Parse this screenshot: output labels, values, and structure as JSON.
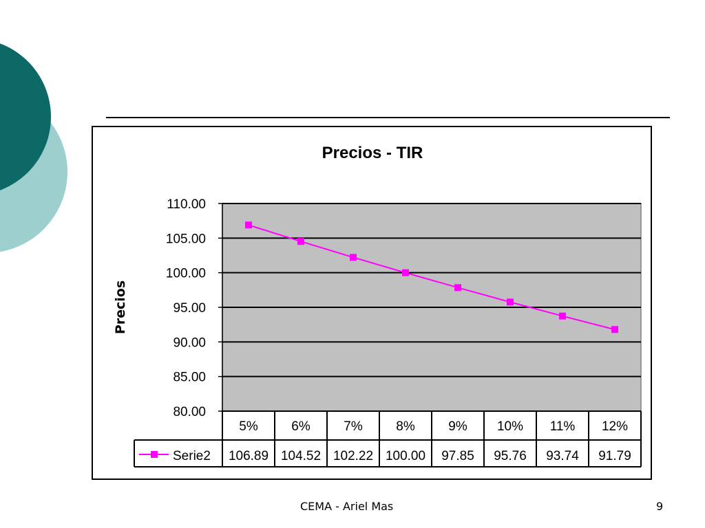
{
  "slide": {
    "footer_text": "CEMA  - Ariel Mas",
    "page_number": "9",
    "theme_colors": {
      "dark_teal": "#0d6966",
      "light_teal": "#9ecfcf",
      "plot_bg": "#c0c0c0"
    }
  },
  "chart_data": {
    "type": "line",
    "title": "Precios - TIR",
    "xlabel": "",
    "ylabel": "Precios",
    "categories": [
      "5%",
      "6%",
      "7%",
      "8%",
      "9%",
      "10%",
      "11%",
      "12%"
    ],
    "series": [
      {
        "name": "Serie2",
        "values": [
          106.89,
          104.52,
          102.22,
          100.0,
          97.85,
          95.76,
          93.74,
          91.79
        ],
        "value_labels": [
          "106.89",
          "104.52",
          "102.22",
          "100.00",
          "97.85",
          "95.76",
          "93.74",
          "91.79"
        ],
        "color": "#ff00ff",
        "marker": "square"
      }
    ],
    "ylim": [
      80,
      110
    ],
    "yticks": [
      "80.00",
      "85.00",
      "90.00",
      "95.00",
      "100.00",
      "105.00",
      "110.00"
    ],
    "ytick_values": [
      80,
      85,
      90,
      95,
      100,
      105,
      110
    ],
    "grid": true,
    "legend": "data-table",
    "data_table": true
  }
}
